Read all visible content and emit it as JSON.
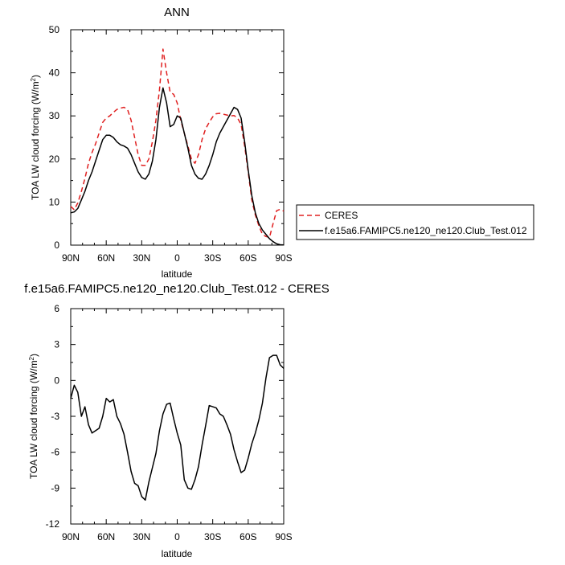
{
  "chart_data": [
    {
      "type": "line",
      "title": "ANN",
      "xlabel": "latitude",
      "ylabel": "TOA LW cloud forcing (W/m",
      "ylabel_sup": "2",
      "ylabel_close": ")",
      "xlim": [
        90,
        -90
      ],
      "ylim": [
        0,
        50
      ],
      "xticks": [
        90,
        60,
        30,
        0,
        -30,
        -60,
        -90
      ],
      "xtick_labels": [
        "90N",
        "60N",
        "30N",
        "0",
        "30S",
        "60S",
        "90S"
      ],
      "yticks": [
        0,
        10,
        20,
        30,
        40,
        50
      ],
      "ytick_labels": [
        "0",
        "10",
        "20",
        "30",
        "40",
        "50"
      ],
      "legend": [
        {
          "name": "CERES",
          "color": "#e02020",
          "dash": true
        },
        {
          "name": "f.e15a6.FAMIPC5.ne120_ne120.Club_Test.012",
          "color": "#000000",
          "dash": false
        }
      ],
      "series": [
        {
          "name": "CERES",
          "color": "#e02020",
          "dashed": true,
          "x": [
            90,
            87,
            84,
            81,
            78,
            75,
            72,
            69,
            66,
            63,
            60,
            57,
            54,
            51,
            48,
            45,
            42,
            39,
            36,
            33,
            30,
            27,
            24,
            21,
            18,
            15,
            12,
            9,
            6,
            3,
            0,
            -3,
            -6,
            -9,
            -12,
            -15,
            -18,
            -21,
            -24,
            -27,
            -30,
            -33,
            -36,
            -39,
            -42,
            -45,
            -48,
            -51,
            -54,
            -57,
            -60,
            -63,
            -66,
            -69,
            -72,
            -75,
            -78,
            -81,
            -84,
            -87,
            -90
          ],
          "y": [
            9,
            8.2,
            9.8,
            12.5,
            15.5,
            19,
            21.5,
            23.5,
            26,
            28.5,
            29.5,
            30,
            30.8,
            31.5,
            31.8,
            32,
            31.5,
            29,
            25,
            21,
            18.5,
            18.5,
            20,
            24,
            29,
            36,
            45.5,
            40,
            35.5,
            35,
            33,
            29,
            26,
            23,
            20,
            19,
            21,
            24.5,
            27,
            28.5,
            29.8,
            30.5,
            30.6,
            30.4,
            30.2,
            30,
            30.1,
            29.5,
            28,
            23,
            17,
            10.5,
            7,
            4.5,
            2.5,
            2,
            1.8,
            5,
            8,
            8.3,
            7.9
          ]
        },
        {
          "name": "f.e15a6.FAMIPC5.ne120_ne120.Club_Test.012",
          "color": "#000000",
          "dashed": false,
          "x": [
            90,
            87,
            84,
            81,
            78,
            75,
            72,
            69,
            66,
            63,
            60,
            57,
            54,
            51,
            48,
            45,
            42,
            39,
            36,
            33,
            30,
            27,
            24,
            21,
            18,
            15,
            12,
            9,
            6,
            3,
            0,
            -3,
            -6,
            -9,
            -12,
            -15,
            -18,
            -21,
            -24,
            -27,
            -30,
            -33,
            -36,
            -39,
            -42,
            -45,
            -48,
            -51,
            -54,
            -57,
            -60,
            -63,
            -66,
            -69,
            -72,
            -75,
            -78,
            -81,
            -84,
            -87,
            -90
          ],
          "y": [
            7.5,
            7.7,
            8.5,
            10.5,
            12.5,
            15,
            17,
            19.5,
            22,
            24.5,
            25.5,
            25.5,
            25,
            24,
            23.3,
            23,
            22.5,
            21,
            19,
            17,
            15.7,
            15.3,
            16.5,
            19.5,
            24.5,
            32,
            36.5,
            33,
            27.5,
            28,
            30,
            29.5,
            26,
            22.5,
            18.5,
            16.5,
            15.5,
            15.3,
            16.5,
            18.5,
            21,
            24,
            26,
            27.5,
            29,
            30.5,
            32,
            31.5,
            29.5,
            24,
            17.5,
            11.5,
            7.5,
            5,
            3.5,
            2.5,
            1.5,
            0.8,
            0.3,
            0.1,
            0.05
          ]
        }
      ]
    },
    {
      "type": "line",
      "title": "f.e15a6.FAMIPC5.ne120_ne120.Club_Test.012 - CERES",
      "xlabel": "latitude",
      "ylabel": "TOA LW cloud forcing (W/m",
      "ylabel_sup": "2",
      "ylabel_close": ")",
      "xlim": [
        90,
        -90
      ],
      "ylim": [
        -12,
        6
      ],
      "xticks": [
        90,
        60,
        30,
        0,
        -30,
        -60,
        -90
      ],
      "xtick_labels": [
        "90N",
        "60N",
        "30N",
        "0",
        "30S",
        "60S",
        "90S"
      ],
      "yticks": [
        -12,
        -9,
        -6,
        -3,
        0,
        3,
        6
      ],
      "ytick_labels": [
        "-12",
        "-9",
        "-6",
        "-3",
        "0",
        "3",
        "6"
      ],
      "series": [
        {
          "name": "f.e15a6.FAMIPC5.ne120_ne120.Club_Test.012 - CERES",
          "color": "#000000",
          "dashed": false,
          "x": [
            90,
            87,
            84,
            81,
            78,
            75,
            72,
            69,
            66,
            63,
            60,
            57,
            54,
            51,
            48,
            45,
            42,
            39,
            36,
            33,
            30,
            27,
            24,
            21,
            18,
            15,
            12,
            9,
            6,
            3,
            0,
            -3,
            -6,
            -9,
            -12,
            -15,
            -18,
            -21,
            -24,
            -27,
            -30,
            -33,
            -36,
            -39,
            -42,
            -45,
            -48,
            -51,
            -54,
            -57,
            -60,
            -63,
            -66,
            -69,
            -72,
            -75,
            -78,
            -81,
            -84,
            -87,
            -90
          ],
          "y": [
            -1.5,
            -0.4,
            -1,
            -3,
            -2.2,
            -3.7,
            -4.4,
            -4.2,
            -4,
            -3,
            -1.5,
            -1.8,
            -1.6,
            -3,
            -3.6,
            -4.5,
            -6,
            -7.6,
            -8.6,
            -8.8,
            -9.7,
            -10,
            -8.5,
            -7.3,
            -6.1,
            -4.2,
            -2.8,
            -2,
            -1.9,
            -3.2,
            -4.4,
            -5.4,
            -8.3,
            -9,
            -9.1,
            -8.3,
            -7.2,
            -5.4,
            -3.8,
            -2.1,
            -2.2,
            -2.3,
            -2.8,
            -3,
            -3.7,
            -4.5,
            -5.8,
            -6.8,
            -7.7,
            -7.5,
            -6.5,
            -5.3,
            -4.4,
            -3.3,
            -1.9,
            0.2,
            1.9,
            2.1,
            2.1,
            1.3,
            1
          ]
        }
      ]
    }
  ]
}
